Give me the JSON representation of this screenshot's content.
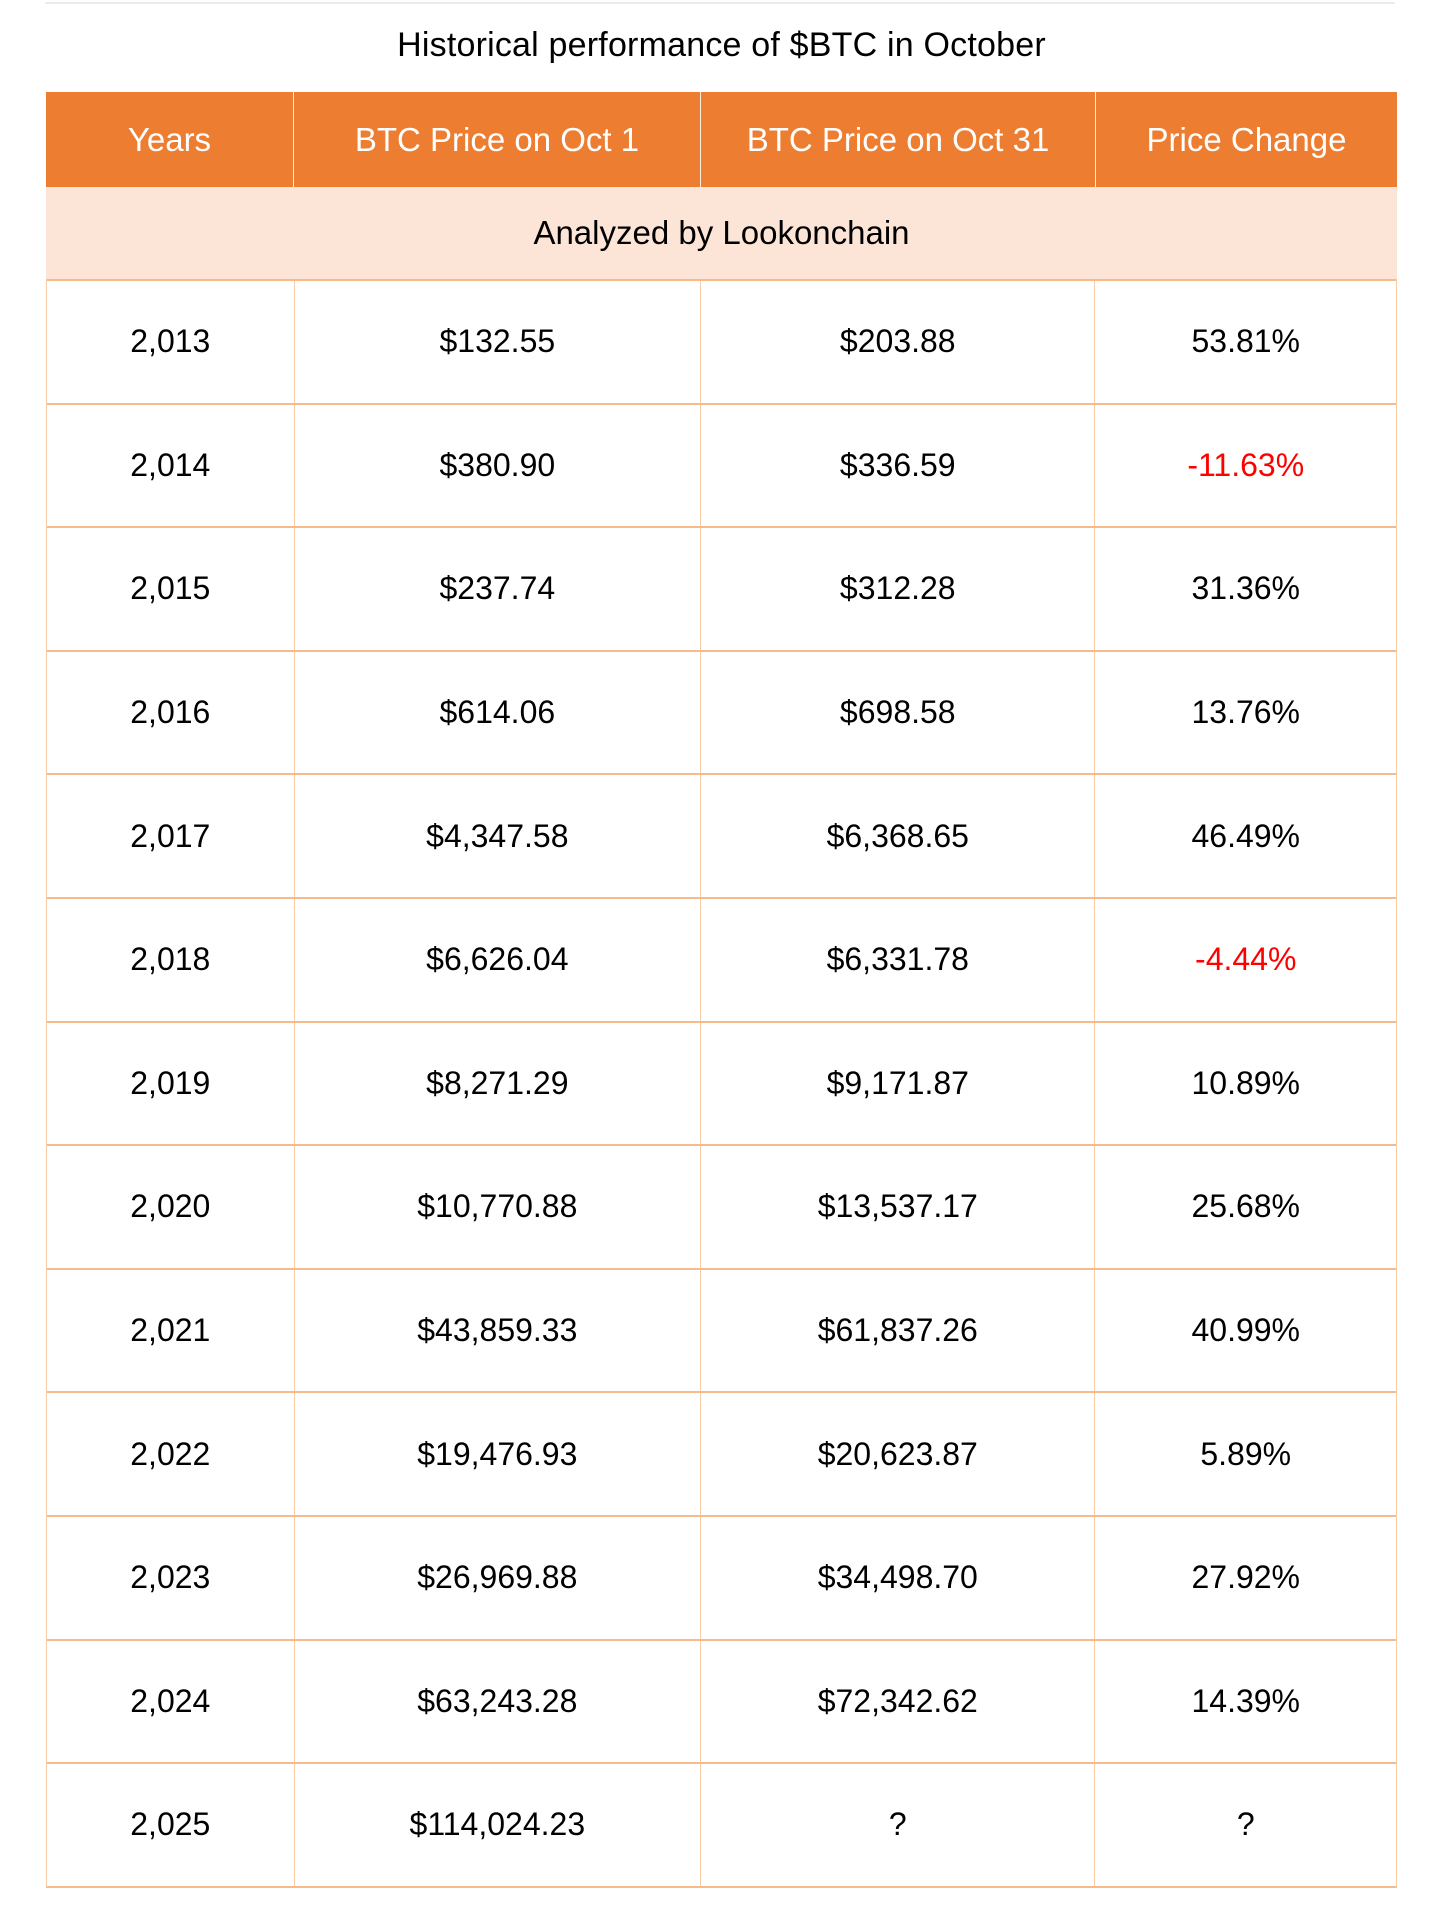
{
  "colors": {
    "header_bg": "#ED7D31",
    "header_text": "#FFFFFF",
    "subheader_bg": "#FCE4D6",
    "grid_border": "#F6BB8C",
    "negative_text": "#FF0000",
    "body_text": "#000000"
  },
  "chart_data": {
    "type": "table",
    "title": "Historical performance of $BTC in October",
    "subheader": "Analyzed by Lookonchain",
    "columns": [
      "Years",
      "BTC Price on Oct 1",
      "BTC Price on Oct 31",
      "Price Change"
    ],
    "rows": [
      [
        "2,013",
        "$132.55",
        "$203.88",
        "53.81%"
      ],
      [
        "2,014",
        "$380.90",
        "$336.59",
        "-11.63%"
      ],
      [
        "2,015",
        "$237.74",
        "$312.28",
        "31.36%"
      ],
      [
        "2,016",
        "$614.06",
        "$698.58",
        "13.76%"
      ],
      [
        "2,017",
        "$4,347.58",
        "$6,368.65",
        "46.49%"
      ],
      [
        "2,018",
        "$6,626.04",
        "$6,331.78",
        "-4.44%"
      ],
      [
        "2,019",
        "$8,271.29",
        "$9,171.87",
        "10.89%"
      ],
      [
        "2,020",
        "$10,770.88",
        "$13,537.17",
        "25.68%"
      ],
      [
        "2,021",
        "$43,859.33",
        "$61,837.26",
        "40.99%"
      ],
      [
        "2,022",
        "$19,476.93",
        "$20,623.87",
        "5.89%"
      ],
      [
        "2,023",
        "$26,969.88",
        "$34,498.70",
        "27.92%"
      ],
      [
        "2,024",
        "$63,243.28",
        "$72,342.62",
        "14.39%"
      ],
      [
        "2,025",
        "$114,024.23",
        "?",
        "?"
      ]
    ]
  }
}
